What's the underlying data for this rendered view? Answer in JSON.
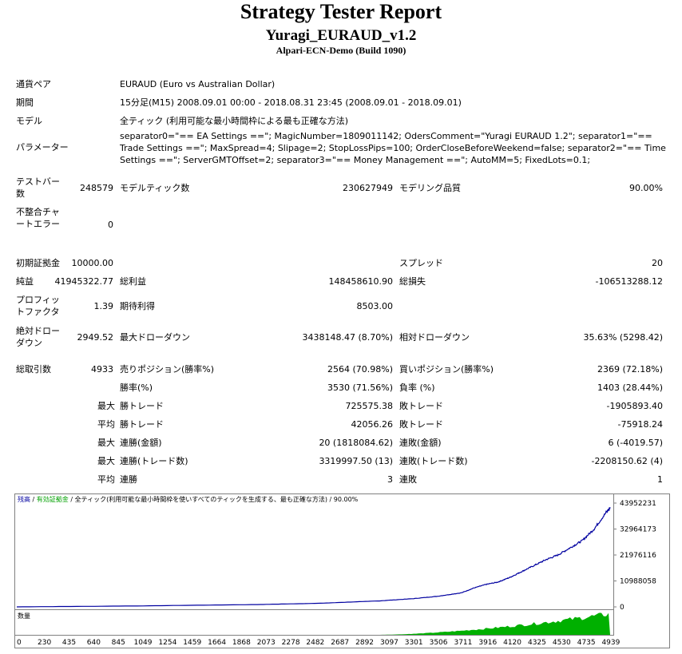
{
  "header": {
    "title": "Strategy Tester Report",
    "ea_name": "Yuragi_EURAUD_v1.2",
    "server": "Alpari-ECN-Demo (Build 1090)"
  },
  "info": {
    "pair_label": "通貨ペア",
    "pair_value": "EURAUD (Euro vs Australian Dollar)",
    "period_label": "期間",
    "period_value": "15分足(M15) 2008.09.01 00:00 - 2018.08.31 23:45 (2008.09.01 - 2018.09.01)",
    "model_label": "モデル",
    "model_value": "全ティック (利用可能な最小時間枠による最も正確な方法)",
    "params_label": "パラメーター",
    "params_value": "separator0=\"== EA Settings ==\"; MagicNumber=1809011142; OdersComment=\"Yuragi EURAUD 1.2\"; separator1=\"== Trade Settings ==\"; MaxSpread=4; Slipage=2; StopLossPips=100; OrderCloseBeforeWeekend=false; separator2=\"== Time Settings ==\"; ServerGMTOffset=2; separator3=\"== Money Management ==\"; AutoMM=5; FixedLots=0.1;"
  },
  "stats": {
    "bars_label": "テストバー数",
    "bars_value": "248579",
    "ticks_label": "モデルティック数",
    "ticks_value": "230627949",
    "quality_label": "モデリング品質",
    "quality_value": "90.00%",
    "mismatch_label": "不整合チャートエラー",
    "mismatch_value": "0",
    "deposit_label": "初期証拠金",
    "deposit_value": "10000.00",
    "spread_label": "スプレッド",
    "spread_value": "20",
    "net_label": "純益",
    "net_value": "41945322.77",
    "gross_profit_label": "総利益",
    "gross_profit_value": "148458610.90",
    "gross_loss_label": "総損失",
    "gross_loss_value": "-106513288.12",
    "pf_label": "プロフィットファクタ",
    "pf_value": "1.39",
    "expected_label": "期待利得",
    "expected_value": "8503.00",
    "abs_dd_label": "絶対ドローダウン",
    "abs_dd_value": "2949.52",
    "max_dd_label": "最大ドローダウン",
    "max_dd_value": "3438148.47 (8.70%)",
    "rel_dd_label": "相対ドローダウン",
    "rel_dd_value": "35.63% (5298.42)",
    "total_label": "総取引数",
    "total_value": "4933",
    "short_label": "売りポジション(勝率%)",
    "short_value": "2564 (70.98%)",
    "long_label": "買いポジション(勝率%)",
    "long_value": "2369 (72.18%)",
    "win_label": "勝率(%)",
    "win_value": "3530 (71.56%)",
    "loss_label": "負率 (%)",
    "loss_value": "1403 (28.44%)",
    "max": "最大",
    "avg": "平均",
    "max_win_label": "勝トレード",
    "max_win_value": "725575.38",
    "max_loss_label": "敗トレード",
    "max_loss_value": "-1905893.40",
    "avg_win_label": "勝トレード",
    "avg_win_value": "42056.26",
    "avg_loss_label": "敗トレード",
    "avg_loss_value": "-75918.24",
    "consec_win_amt_label": "連勝(金額)",
    "consec_win_amt_value": "20 (1818084.62)",
    "consec_loss_amt_label": "連敗(金額)",
    "consec_loss_amt_value": "6 (-4019.57)",
    "consec_win_cnt_label": "連勝(トレード数)",
    "consec_win_cnt_value": "3319997.50 (13)",
    "consec_loss_cnt_label": "連敗(トレード数)",
    "consec_loss_cnt_value": "-2208150.62 (4)",
    "avg_consec_win_label": "連勝",
    "avg_consec_win_value": "3",
    "avg_consec_loss_label": "連敗",
    "avg_consec_loss_value": "1"
  },
  "chart_data": {
    "type": "line",
    "legend": {
      "balance": "残高",
      "sep1": " / ",
      "equity": "有効証拠金",
      "sep2": " / ",
      "model": "全ティック(利用可能な最小時間枠を使いすべてのティックを生成する、最も正確な方法)",
      "sep3": " / ",
      "quality": "90.00%"
    },
    "volume_label": "数量",
    "y_ticks": [
      "43952231",
      "32964173",
      "21976116",
      "10988058",
      "0"
    ],
    "ylim": [
      0,
      43952231
    ],
    "x_ticks": [
      "0",
      "230",
      "435",
      "640",
      "845",
      "1049",
      "1254",
      "1459",
      "1664",
      "1868",
      "2073",
      "2278",
      "2482",
      "2687",
      "2892",
      "3097",
      "3301",
      "3506",
      "3711",
      "3916",
      "4120",
      "4325",
      "4530",
      "4735",
      "4939"
    ],
    "xlim": [
      0,
      4933
    ],
    "series": [
      {
        "name": "残高",
        "x": [
          0,
          1000,
          2000,
          2500,
          3000,
          3300,
          3500,
          3700,
          3800,
          3900,
          4000,
          4100,
          4200,
          4300,
          4400,
          4500,
          4600,
          4700,
          4800,
          4900,
          4933
        ],
        "y": [
          10000,
          400000,
          1000000,
          1500000,
          2500000,
          3500000,
          4500000,
          6000000,
          8000000,
          9500000,
          10500000,
          12500000,
          15000000,
          17500000,
          20000000,
          22000000,
          25000000,
          28000000,
          33000000,
          40000000,
          41955322
        ]
      }
    ],
    "colors": {
      "balance": "#0000a0",
      "equity": "#00a000",
      "volume": "#00b000"
    }
  }
}
